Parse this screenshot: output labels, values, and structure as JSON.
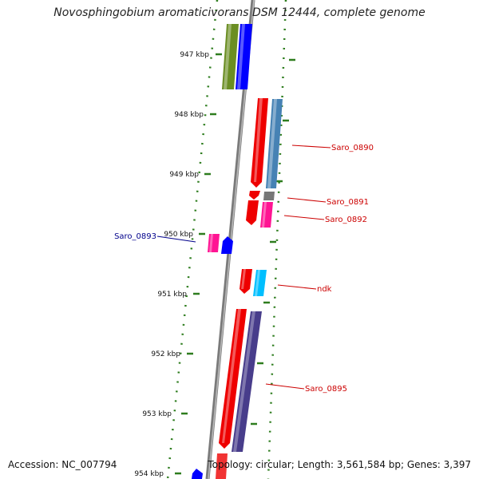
{
  "title": "Novosphingobium aromaticivorans DSM 12444, complete genome",
  "footer": {
    "accession": "Accession: NC_007794",
    "summary": "Topology: circular; Length: 3,561,584 bp; Genes: 3,397"
  },
  "ticks": [
    "947 kbp",
    "948 kbp",
    "949 kbp",
    "950 kbp",
    "951 kbp",
    "952 kbp",
    "953 kbp",
    "954 kbp"
  ],
  "gene_labels": [
    {
      "name": "Saro_0890",
      "color": "#cc0000"
    },
    {
      "name": "Saro_0891",
      "color": "#cc0000"
    },
    {
      "name": "Saro_0892",
      "color": "#cc0000"
    },
    {
      "name": "Saro_0893",
      "color": "#00008b"
    },
    {
      "name": "ndk",
      "color": "#cc0000"
    },
    {
      "name": "Saro_0895",
      "color": "#cc0000"
    }
  ],
  "colors": {
    "backbone": "#888888",
    "tick": "#2e7d1e",
    "cds": "#ee0000",
    "olive": "#6b8e23",
    "blue": "#0000ff",
    "steel": "#4682b4",
    "gray": "#777777",
    "pink": "#ff1493",
    "cyan": "#00bfff",
    "slate": "#483d8b"
  }
}
